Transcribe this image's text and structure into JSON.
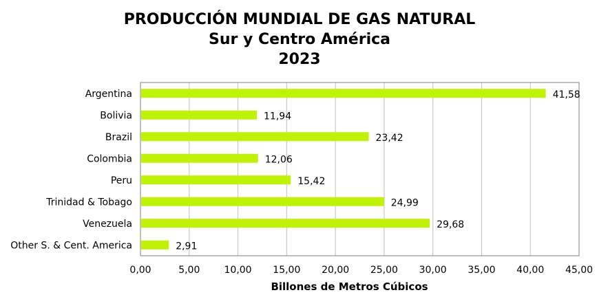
{
  "chart_data": {
    "type": "bar",
    "orientation": "horizontal",
    "title": [
      "PRODUCCIÓN MUNDIAL DE GAS NATURAL",
      "Sur y Centro América",
      "2023"
    ],
    "xlabel": "Billones de Metros Cúbicos",
    "ylabel": "",
    "categories": [
      "Argentina",
      "Bolivia",
      "Brazil",
      "Colombia",
      "Peru",
      "Trinidad & Tobago",
      "Venezuela",
      "Other S. & Cent. America"
    ],
    "values": [
      41.58,
      11.94,
      23.42,
      12.06,
      15.42,
      24.99,
      29.68,
      2.91
    ],
    "value_labels": [
      "41,58",
      "11,94",
      "23,42",
      "12,06",
      "15,42",
      "24,99",
      "29,68",
      "2,91"
    ],
    "xlim": [
      0,
      45
    ],
    "xticks": [
      0,
      5,
      10,
      15,
      20,
      25,
      30,
      35,
      40,
      45
    ],
    "xtick_labels": [
      "0,00",
      "5,00",
      "10,00",
      "15,00",
      "20,00",
      "25,00",
      "30,00",
      "35,00",
      "40,00",
      "45,00"
    ],
    "grid": "vertical",
    "legend": "none",
    "bar_color": "#BFF205",
    "grid_color": "#C0C0C0"
  }
}
